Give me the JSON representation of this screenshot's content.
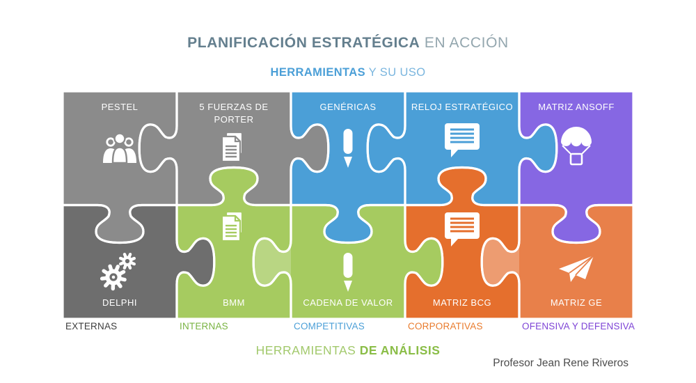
{
  "header": {
    "title_strong": "PLANIFICACIÓN ESTRATÉGICA",
    "title_light": "EN ACCIÓN",
    "subtitle_strong": "HERRAMIENTAS",
    "subtitle_light": "Y SU USO"
  },
  "puzzle": {
    "pieces": [
      {
        "label": "PESTEL",
        "color": "#8b8b8b",
        "icon": "people-icon"
      },
      {
        "label": "5 FUERZAS DE PORTER",
        "color": "#8b8b8b",
        "icon": "document-icon"
      },
      {
        "label": "GENÉRICAS",
        "color": "#4b9fd7",
        "icon": "pencil-icon"
      },
      {
        "label": "RELOJ ESTRATÉGICO",
        "color": "#4b9fd7",
        "icon": "chat-icon"
      },
      {
        "label": "MATRIZ ANSOFF",
        "color": "#8667e3",
        "icon": "parachute-icon"
      },
      {
        "label": "DELPHI",
        "color": "#6e6e6e",
        "icon": "gears-icon"
      },
      {
        "label": "BMM",
        "color": "#a6cb60",
        "icon": "document-icon"
      },
      {
        "label": "CADENA DE VALOR",
        "color": "#a6cb60",
        "icon": "pencil-icon"
      },
      {
        "label": "MATRIZ BCG",
        "color": "#e56f2d",
        "icon": "chat-icon"
      },
      {
        "label": "MATRIZ GE",
        "color": "#e8804a",
        "icon": "paper-plane-icon"
      }
    ]
  },
  "categories": [
    {
      "label": "EXTERNAS",
      "color": "#3d3d3d"
    },
    {
      "label": "INTERNAS",
      "color": "#79b342"
    },
    {
      "label": "COMPETITIVAS",
      "color": "#4b9fd7"
    },
    {
      "label": "CORPORATIVAS",
      "color": "#e97b2d"
    },
    {
      "label": "OFENSIVA Y DEFENSIVA",
      "color": "#7e44d6"
    }
  ],
  "footer": {
    "bottom_light": "HERRAMIENTAS",
    "bottom_strong": "DE ANÁLISIS",
    "credit": "Profesor Jean Rene Riveros"
  },
  "colors": {
    "title_strong": "#647f8e",
    "title_light": "#93a6ae",
    "subtitle_strong": "#4b9fd7",
    "subtitle_light": "#79b5de",
    "bottom_light": "#a2c96c",
    "bottom_strong": "#8abd47",
    "credit": "#4c4c4c",
    "puzzle_outline": "#ffffff"
  }
}
